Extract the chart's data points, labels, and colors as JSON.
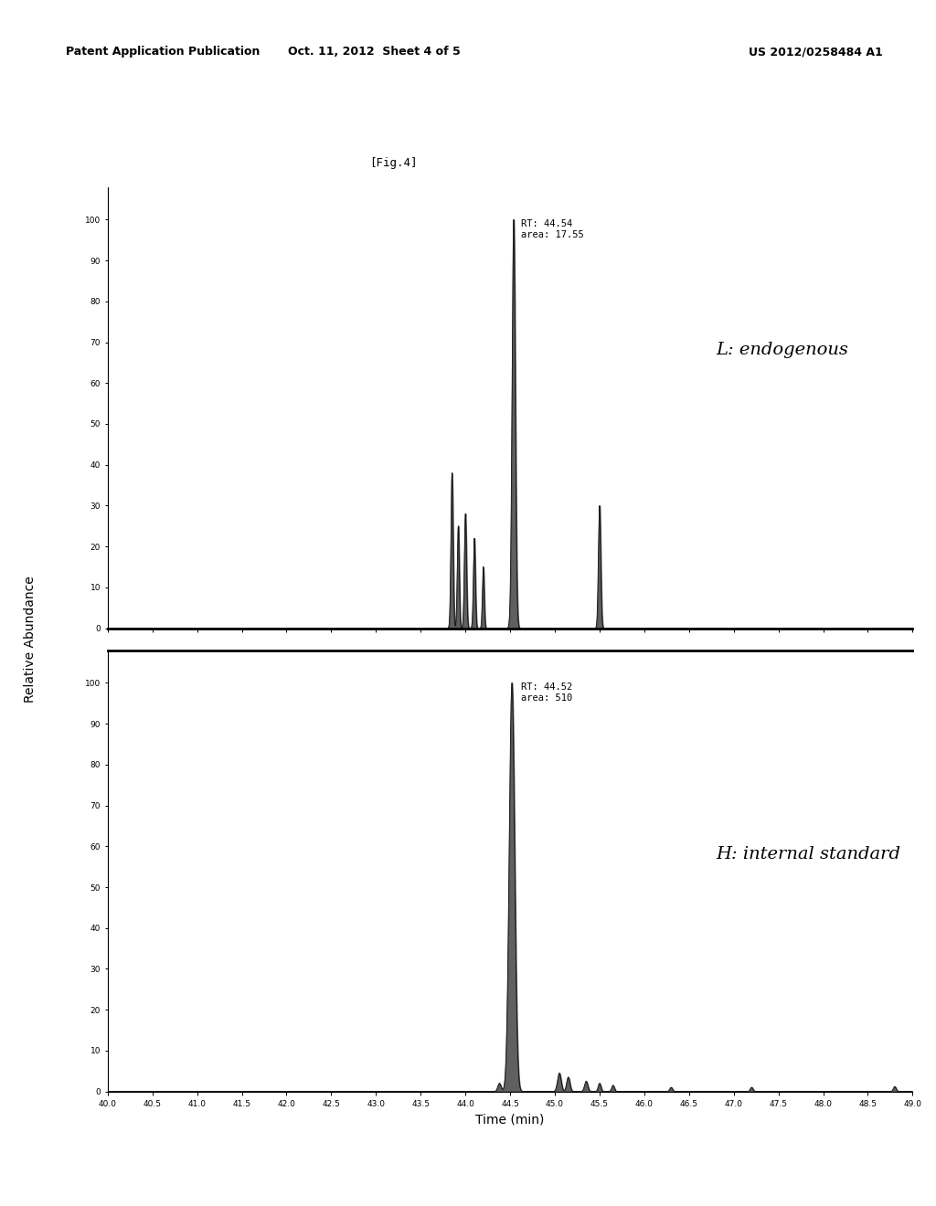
{
  "fig_label": "[Fig.4]",
  "header_left": "Patent Application Publication",
  "header_center": "Oct. 11, 2012  Sheet 4 of 5",
  "header_right": "US 2012/0258484 A1",
  "xlabel": "Time (min)",
  "ylabel": "Relative Abundance",
  "xmin": 40.0,
  "xmax": 49.0,
  "xticks": [
    40.0,
    40.5,
    41.0,
    41.5,
    42.0,
    42.5,
    43.0,
    43.5,
    44.0,
    44.5,
    45.0,
    45.5,
    46.0,
    46.5,
    47.0,
    47.5,
    48.0,
    48.5,
    49.0
  ],
  "yticks": [
    0,
    10,
    20,
    30,
    40,
    50,
    60,
    70,
    80,
    90,
    100
  ],
  "top_annotation": "RT: 44.54\narea: 17.55",
  "top_label": "L: endogenous",
  "bottom_annotation": "RT: 44.52\narea: 510",
  "bottom_label": "H: internal standard",
  "background_color": "#ffffff",
  "plot_bg_color": "#ffffff",
  "line_color": "#111111",
  "fill_color": "#444444",
  "header_fontsize": 9,
  "axis_label_fontsize": 9,
  "tick_fontsize": 6.5,
  "annotation_fontsize": 7.5,
  "chart_label_fontsize": 14,
  "fig_label_fontsize": 9
}
